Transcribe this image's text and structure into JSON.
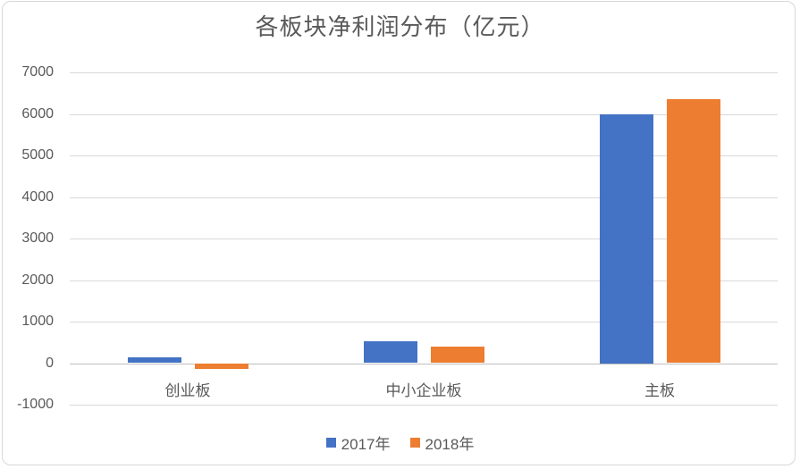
{
  "title": "各板块净利润分布（亿元）",
  "colors": {
    "series_2017": "#4472C4",
    "series_2018": "#ED7D31",
    "gridline": "#D9D9D9",
    "zero_axis": "#BFBFBF",
    "text": "#595959",
    "frame_border": "#D7D7D7"
  },
  "chart_data": {
    "type": "bar",
    "title": "各板块净利润分布（亿元）",
    "categories": [
      "创业板",
      "中小企业板",
      "主板"
    ],
    "series": [
      {
        "name": "2017年",
        "color": "#4472C4",
        "values": [
          130,
          520,
          6000
        ]
      },
      {
        "name": "2018年",
        "color": "#ED7D31",
        "values": [
          -150,
          390,
          6350
        ]
      }
    ],
    "ylim": [
      -1000,
      7000
    ],
    "ytick_step": 1000,
    "ytick_labels": [
      "7000",
      "6000",
      "5000",
      "4000",
      "3000",
      "2000",
      "1000",
      "0",
      "-1000"
    ],
    "grid": true,
    "legend_position": "bottom",
    "xlabel": "",
    "ylabel": ""
  }
}
